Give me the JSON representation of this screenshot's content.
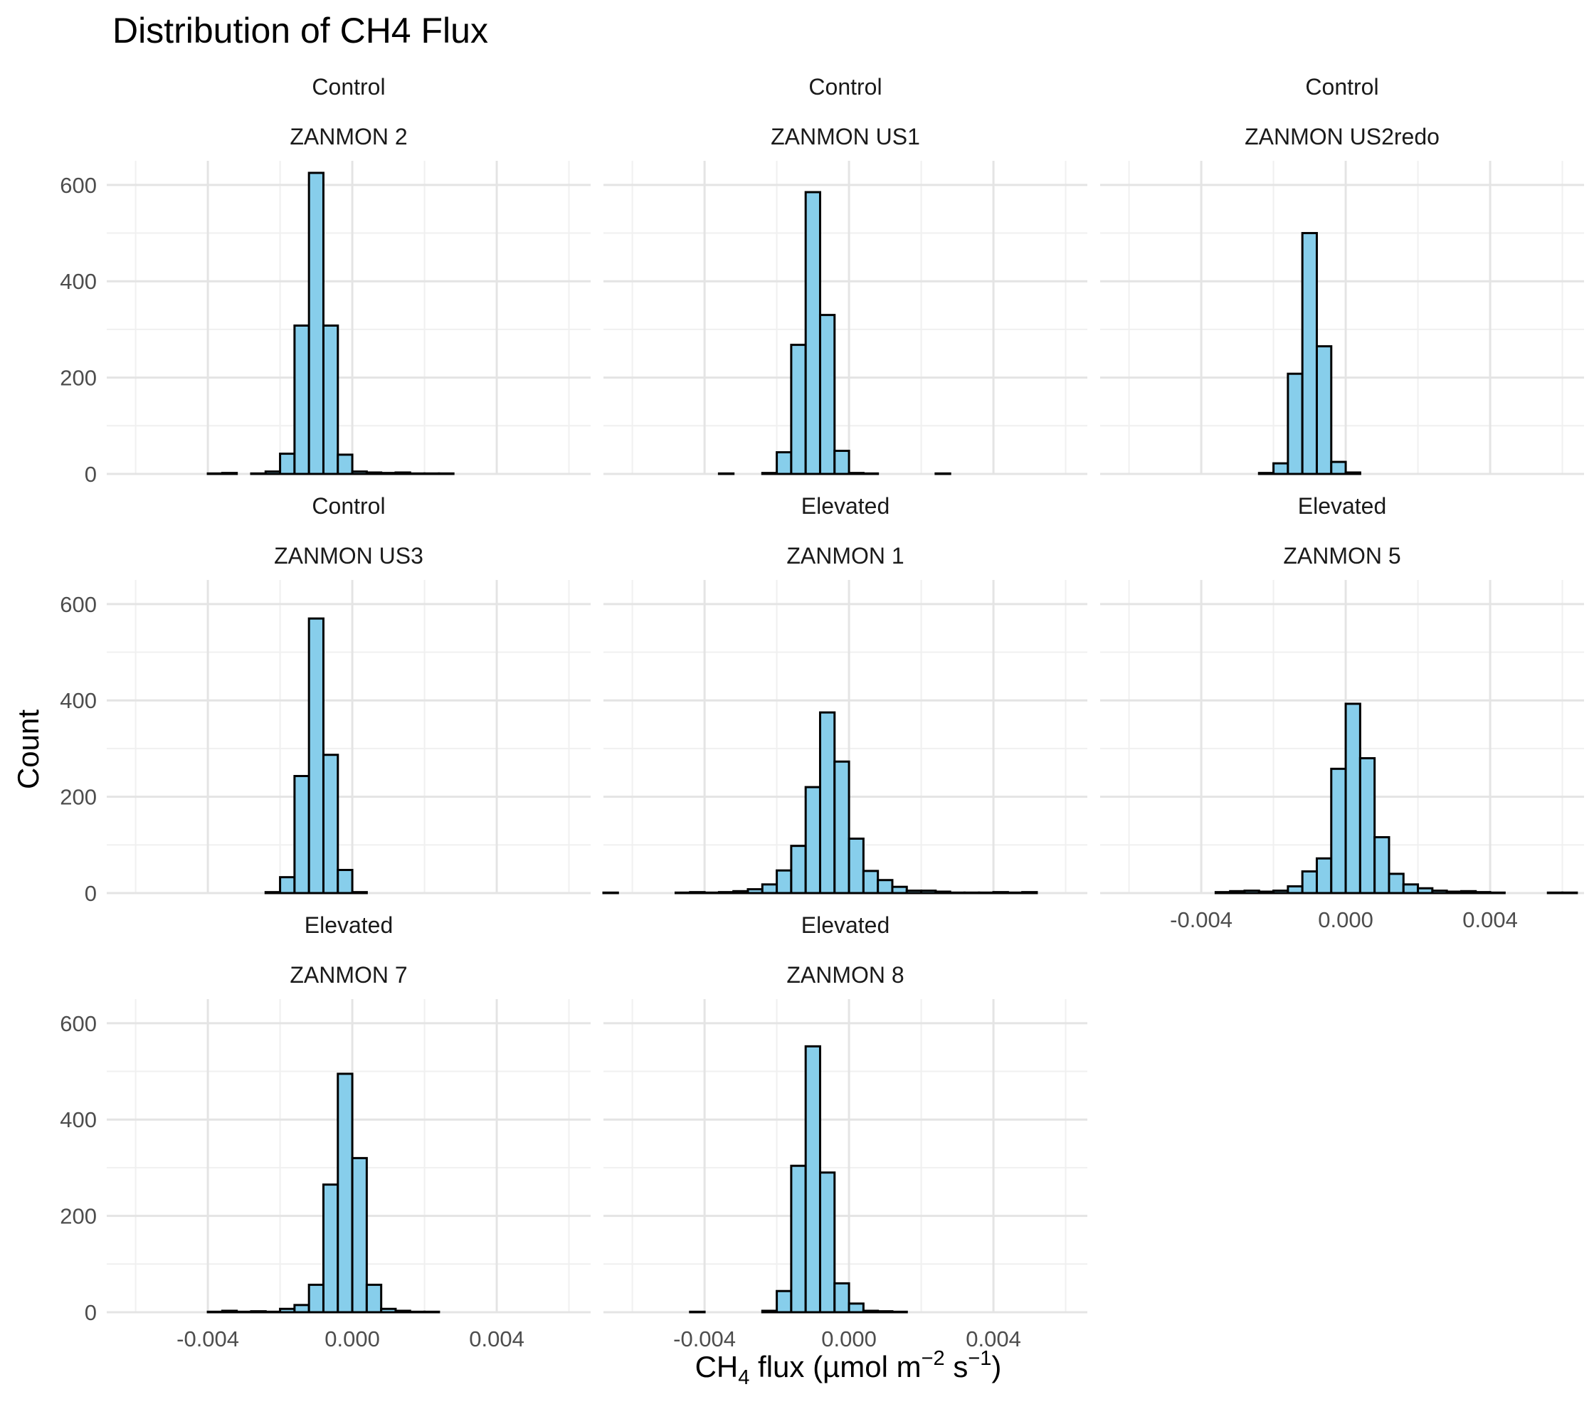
{
  "chart_data": {
    "type": "bar",
    "subtype": "faceted-histogram",
    "title": "Distribution of CH4 Flux",
    "xlabel_parts": {
      "base": "CH",
      "sub": "4",
      "mid": " flux (µmol m",
      "sup1": "−2",
      "mid2": " s",
      "sup2": "−1",
      "end": ")"
    },
    "ylabel": "Count",
    "xlim": [
      -0.0068,
      0.0066
    ],
    "ylim": [
      0,
      650
    ],
    "x_ticks": [
      -0.004,
      0.0,
      0.004
    ],
    "x_tick_labels": [
      "-0.004",
      "0.000",
      "0.004"
    ],
    "y_ticks": [
      0,
      200,
      400,
      600
    ],
    "y_tick_labels": [
      "0",
      "200",
      "400",
      "600"
    ],
    "bin_width": 0.0004,
    "bin_start": -0.0068,
    "grid": true,
    "bar_fill": "#87ceeb",
    "bar_stroke": "#000000",
    "legend": "none",
    "facets": [
      {
        "treatment": "Control",
        "site": "ZANMON 2",
        "show_x_axis": false,
        "values": [
          0,
          0,
          0,
          0,
          0,
          0,
          0,
          1,
          2,
          0,
          1,
          5,
          42,
          308,
          625,
          308,
          40,
          5,
          3,
          2,
          3,
          1,
          1,
          1,
          0,
          0,
          0,
          0,
          0,
          0,
          0,
          0,
          0
        ]
      },
      {
        "treatment": "Control",
        "site": "ZANMON US1",
        "show_x_axis": false,
        "values": [
          0,
          0,
          0,
          0,
          0,
          0,
          0,
          0,
          1,
          0,
          0,
          2,
          45,
          268,
          585,
          330,
          48,
          2,
          1,
          0,
          0,
          0,
          0,
          1,
          0,
          0,
          0,
          0,
          0,
          0,
          0,
          0,
          0
        ]
      },
      {
        "treatment": "Control",
        "site": "ZANMON US2redo",
        "show_x_axis": false,
        "values": [
          0,
          0,
          0,
          0,
          0,
          0,
          0,
          0,
          0,
          0,
          0,
          2,
          22,
          208,
          500,
          265,
          25,
          3,
          0,
          0,
          0,
          0,
          0,
          0,
          0,
          0,
          0,
          0,
          0,
          0,
          0,
          0,
          0
        ]
      },
      {
        "treatment": "Control",
        "site": "ZANMON US3",
        "show_x_axis": false,
        "values": [
          0,
          0,
          0,
          0,
          0,
          0,
          0,
          0,
          0,
          0,
          0,
          2,
          33,
          243,
          570,
          287,
          48,
          2,
          0,
          0,
          0,
          0,
          0,
          0,
          0,
          0,
          0,
          0,
          0,
          0,
          0,
          0,
          0
        ]
      },
      {
        "treatment": "Elevated",
        "site": "ZANMON 1",
        "show_x_axis": false,
        "values": [
          1,
          0,
          0,
          0,
          0,
          1,
          2,
          1,
          2,
          4,
          8,
          18,
          47,
          98,
          220,
          375,
          273,
          113,
          46,
          27,
          13,
          5,
          5,
          3,
          1,
          1,
          1,
          2,
          1,
          2,
          0,
          0,
          0
        ]
      },
      {
        "treatment": "Elevated",
        "site": "ZANMON 5",
        "show_x_axis": true,
        "values": [
          0,
          0,
          0,
          0,
          0,
          0,
          0,
          0,
          2,
          4,
          5,
          3,
          5,
          14,
          45,
          72,
          258,
          393,
          280,
          116,
          40,
          18,
          10,
          5,
          3,
          4,
          2,
          1,
          0,
          0,
          0,
          1,
          1
        ]
      },
      {
        "treatment": "Elevated",
        "site": "ZANMON 7",
        "show_x_axis": true,
        "values": [
          0,
          0,
          0,
          0,
          0,
          0,
          0,
          1,
          3,
          1,
          2,
          1,
          7,
          15,
          57,
          265,
          495,
          320,
          57,
          7,
          3,
          1,
          1,
          0,
          0,
          0,
          0,
          0,
          0,
          0,
          0,
          0,
          0
        ]
      },
      {
        "treatment": "Elevated",
        "site": "ZANMON 8",
        "show_x_axis": true,
        "values": [
          0,
          0,
          0,
          0,
          0,
          0,
          1,
          0,
          0,
          0,
          0,
          3,
          44,
          304,
          552,
          290,
          60,
          18,
          3,
          2,
          1,
          0,
          0,
          0,
          0,
          0,
          0,
          0,
          0,
          0,
          0,
          0,
          0
        ]
      }
    ]
  }
}
